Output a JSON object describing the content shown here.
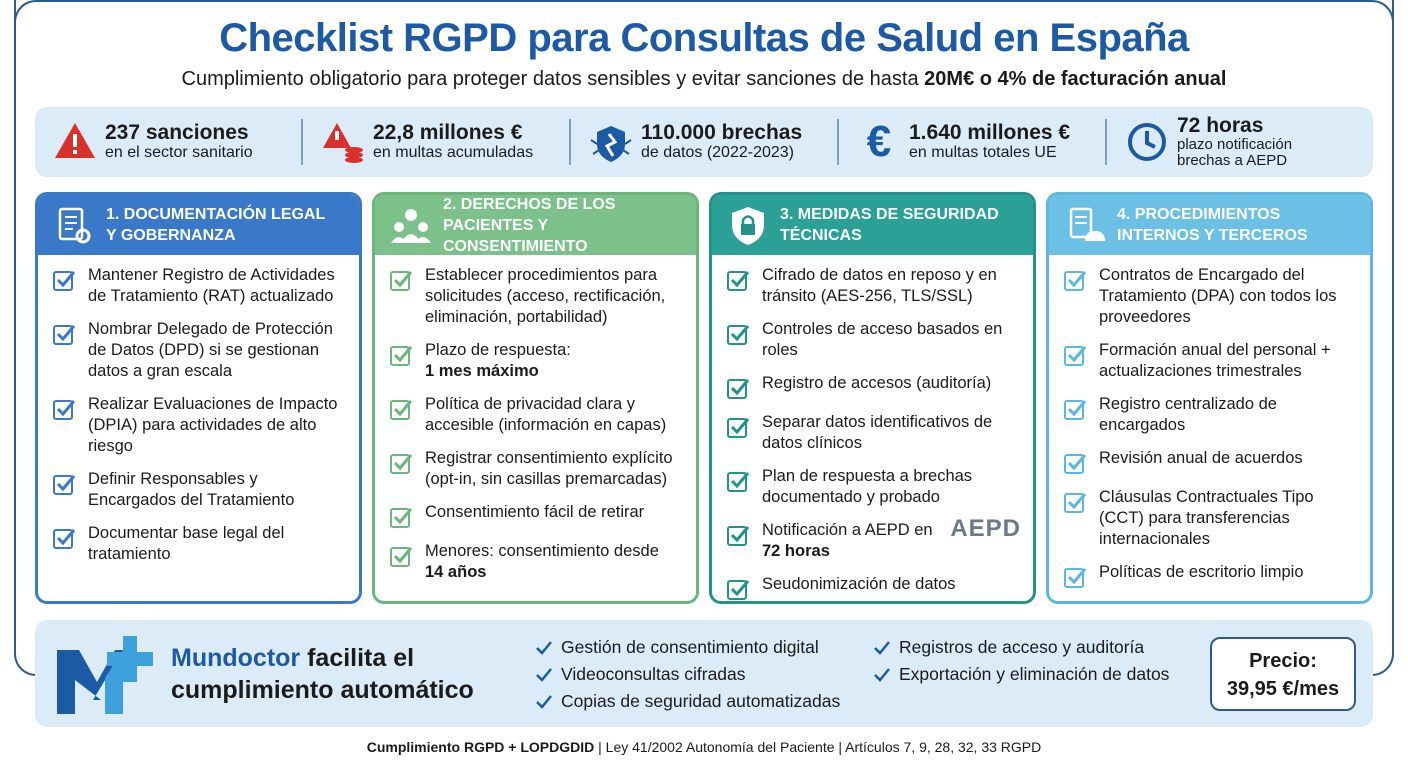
{
  "header": {
    "title": "Checklist RGPD para Consultas de Salud en España",
    "subtitle": "Cumplimiento obligatorio para proteger datos sensibles y evitar sanciones de hasta ",
    "subtitle_strong": "20M€ o 4% de facturación anual"
  },
  "stats": [
    {
      "value": "237 sanciones",
      "label": "en el sector sanitario"
    },
    {
      "value": "22,8 millones €",
      "label": "en multas acumuladas"
    },
    {
      "value": "110.000 brechas",
      "label": "de datos (2022-2023)"
    },
    {
      "value": "1.640 millones €",
      "label": "en multas totales UE"
    },
    {
      "value": "72 horas",
      "label": "plazo notificación brechas a AEPD"
    }
  ],
  "columns": [
    {
      "title": "1. DOCUMENTACIÓN LEGAL Y GOBERNANZA",
      "items": [
        {
          "text": "Mantener Registro de Actividades de Tratamiento (RAT) actualizado"
        },
        {
          "text": "Nombrar Delegado de Protección de Datos (DPD) si se gestionan datos a gran escala"
        },
        {
          "text": "Realizar Evaluaciones de Impacto (DPIA) para actividades de alto riesgo"
        },
        {
          "text": "Definir Responsables y Encargados del Tratamiento"
        },
        {
          "text": "Documentar base legal del tratamiento"
        }
      ]
    },
    {
      "title": "2. DERECHOS DE LOS PACIENTES Y CONSENTIMIENTO",
      "items": [
        {
          "text": "Establecer procedimientos para solicitudes (acceso, rectificación, eliminación, portabilidad)"
        },
        {
          "text": "Plazo de respuesta:",
          "strong": "1 mes máximo"
        },
        {
          "text": "Política de privacidad clara y accesible (información en capas)"
        },
        {
          "text": "Registrar consentimiento explícito (opt-in, sin casillas premarcadas)"
        },
        {
          "text": "Consentimiento fácil de retirar"
        },
        {
          "text": "Menores: consentimiento desde",
          "strong": "14 años"
        }
      ]
    },
    {
      "title": "3. MEDIDAS DE SEGURIDAD TÉCNICAS",
      "logo": "AEPD",
      "items": [
        {
          "text": "Cifrado de datos en reposo y en tránsito (AES-256, TLS/SSL)"
        },
        {
          "text": "Controles de acceso basados en roles"
        },
        {
          "text": "Registro de accesos (auditoría)"
        },
        {
          "text": "Separar datos identificativos de datos clínicos"
        },
        {
          "text": "Plan de respuesta a brechas documentado y probado"
        },
        {
          "text": "Notificación a AEPD en",
          "strong": "72 horas"
        },
        {
          "text": "Seudonimización de datos"
        }
      ]
    },
    {
      "title": "4. PROCEDIMIENTOS INTERNOS Y TERCEROS",
      "items": [
        {
          "text": "Contratos de Encargado del Tratamiento (DPA) con todos los proveedores"
        },
        {
          "text": "Formación anual del personal + actualizaciones trimestrales"
        },
        {
          "text": "Registro centralizado de encargados"
        },
        {
          "text": "Revisión anual de acuerdos"
        },
        {
          "text": "Cláusulas Contractuales Tipo (CCT) para transferencias internacionales"
        },
        {
          "text": "Políticas de escritorio limpio"
        }
      ]
    }
  ],
  "promo": {
    "brand": "Mundoctor",
    "tagline": " facilita el cumplimiento automático",
    "features": [
      "Gestión de consentimiento digital",
      "Videoconsultas cifradas",
      "Copias de seguridad automatizadas",
      "Registros de acceso y auditoría",
      "Exportación y eliminación de datos"
    ],
    "price_label": "Precio:",
    "price": "39,95 €/mes"
  },
  "footer": {
    "strong": "Cumplimiento RGPD + LOPDGDID",
    "text": " | Ley 41/2002 Autonomía del Paciente | Artículos 7, 9, 28, 32, 33 RGPD"
  }
}
